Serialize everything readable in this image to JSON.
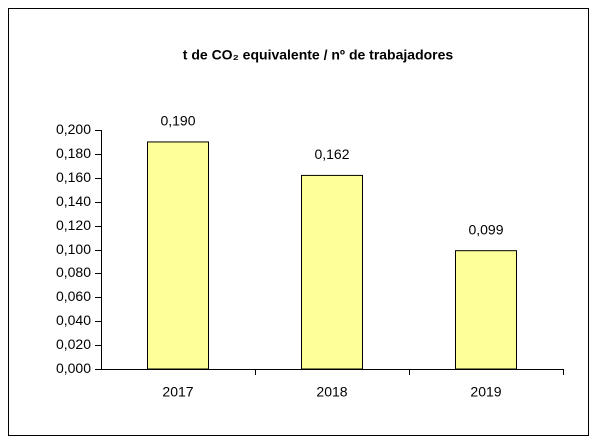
{
  "chart_data": {
    "type": "bar",
    "title": "t de CO₂ equivalente / nº de trabajadores",
    "categories": [
      "2017",
      "2018",
      "2019"
    ],
    "values": [
      0.19,
      0.162,
      0.099
    ],
    "value_labels": [
      "0,190",
      "0,162",
      "0,099"
    ],
    "color": "#ffff99",
    "ylim": [
      0,
      0.2
    ],
    "yticks": [
      {
        "value": 0,
        "label": "0,000"
      },
      {
        "value": 0.02,
        "label": "0,020"
      },
      {
        "value": 0.04,
        "label": "0,040"
      },
      {
        "value": 0.06,
        "label": "0,060"
      },
      {
        "value": 0.08,
        "label": "0,080"
      },
      {
        "value": 0.1,
        "label": "0,100"
      },
      {
        "value": 0.12,
        "label": "0,120"
      },
      {
        "value": 0.14,
        "label": "0,140"
      },
      {
        "value": 0.16,
        "label": "0,160"
      },
      {
        "value": 0.18,
        "label": "0,180"
      },
      {
        "value": 0.2,
        "label": "0,200"
      }
    ],
    "grid": false
  }
}
